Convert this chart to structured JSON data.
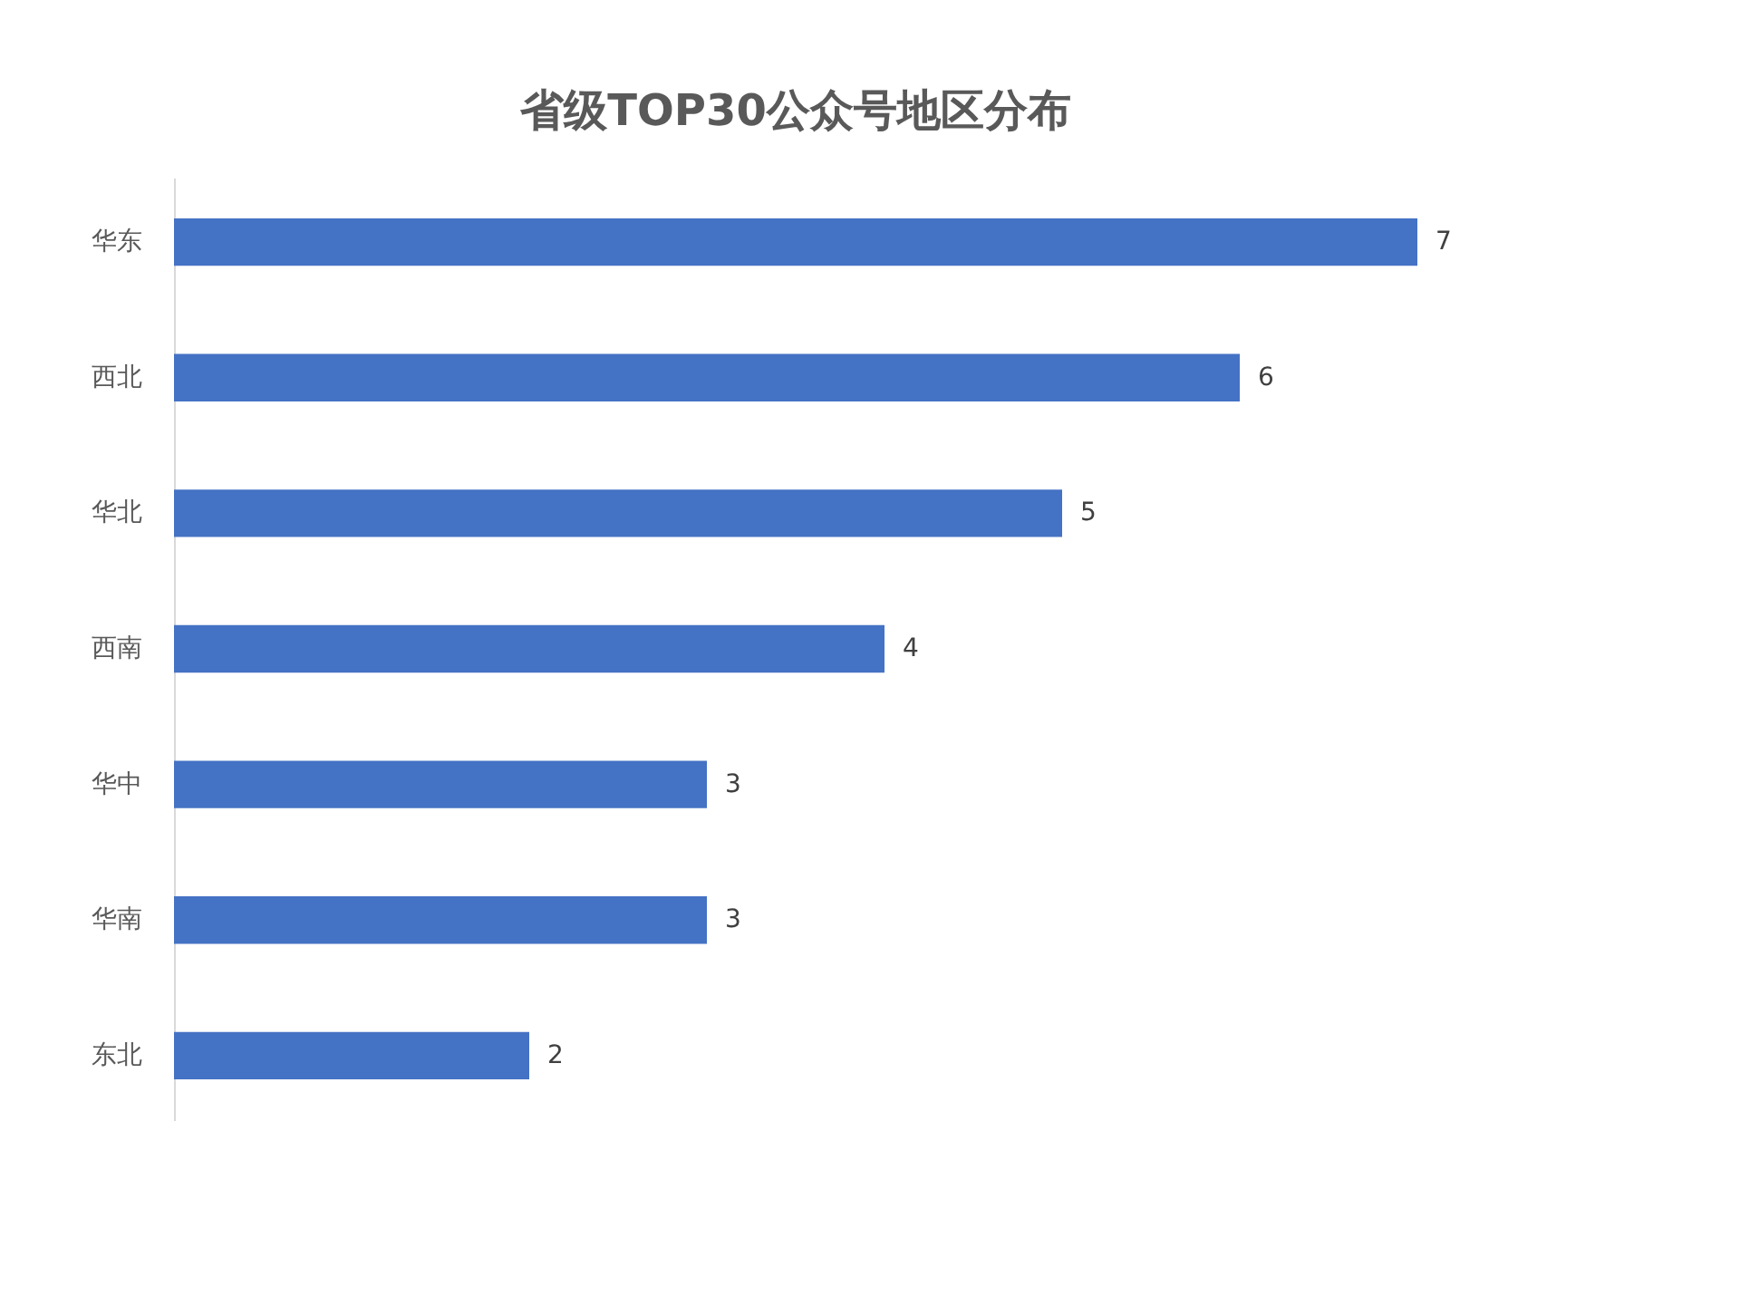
{
  "chart_data": {
    "type": "bar",
    "orientation": "horizontal",
    "title": "省级TOP30公众号地区分布",
    "categories": [
      "华东",
      "西北",
      "华北",
      "西南",
      "华中",
      "华南",
      "东北"
    ],
    "values": [
      7,
      6,
      5,
      4,
      3,
      3,
      2
    ],
    "color": "#4472c4",
    "data_labels": true,
    "tick_labels": "y"
  }
}
